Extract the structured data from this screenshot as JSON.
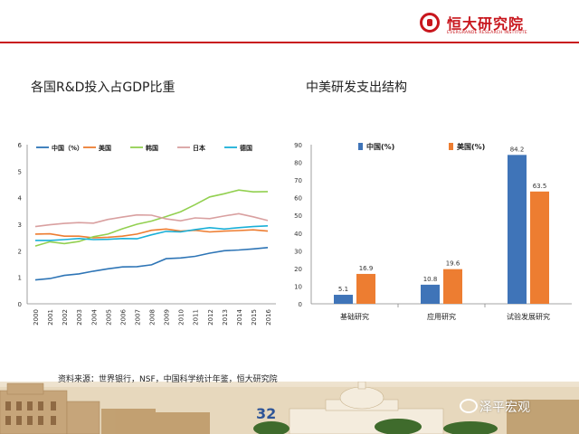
{
  "brand": {
    "cn": "恒大研究院",
    "en": "EVERGRANDE RESEARCH INSTITUTE",
    "accent": "#c8161d"
  },
  "slide": {
    "left_title": "各国R&D投入占GDP比重",
    "right_title": "中美研发支出结构",
    "source": "资料来源：世界银行，NSF，中国科学统计年鉴，恒大研究院",
    "page_number": "32",
    "watermark": "泽平宏观"
  },
  "chart_data": [
    {
      "type": "line",
      "x": [
        "2000",
        "2001",
        "2002",
        "2003",
        "2004",
        "2005",
        "2006",
        "2007",
        "2008",
        "2009",
        "2010",
        "2011",
        "2012",
        "2013",
        "2014",
        "2015",
        "2016"
      ],
      "ylim": [
        0,
        6
      ],
      "yticks": [
        "0",
        "1",
        "2",
        "3",
        "4",
        "5",
        "6"
      ],
      "legend_position": "top",
      "grid": false,
      "series": [
        {
          "name": "中国（%）",
          "color": "#2e75b6",
          "values": [
            0.9,
            0.95,
            1.07,
            1.13,
            1.23,
            1.32,
            1.39,
            1.4,
            1.47,
            1.7,
            1.73,
            1.79,
            1.91,
            2.0,
            2.03,
            2.07,
            2.12
          ]
        },
        {
          "name": "美国",
          "color": "#ed7d31",
          "values": [
            2.63,
            2.64,
            2.55,
            2.55,
            2.49,
            2.51,
            2.55,
            2.63,
            2.77,
            2.82,
            2.74,
            2.77,
            2.71,
            2.74,
            2.76,
            2.79,
            2.74
          ]
        },
        {
          "name": "韩国",
          "color": "#92d050",
          "values": [
            2.18,
            2.34,
            2.27,
            2.35,
            2.53,
            2.63,
            2.83,
            3.0,
            3.12,
            3.29,
            3.47,
            3.74,
            4.03,
            4.15,
            4.29,
            4.22,
            4.23
          ]
        },
        {
          "name": "日本",
          "color": "#d9a0a0",
          "values": [
            2.91,
            2.98,
            3.03,
            3.06,
            3.04,
            3.18,
            3.27,
            3.35,
            3.34,
            3.2,
            3.13,
            3.24,
            3.21,
            3.31,
            3.4,
            3.28,
            3.14
          ]
        },
        {
          "name": "德国",
          "color": "#1ab0d8",
          "values": [
            2.39,
            2.39,
            2.42,
            2.46,
            2.42,
            2.43,
            2.46,
            2.45,
            2.6,
            2.73,
            2.71,
            2.8,
            2.87,
            2.82,
            2.87,
            2.91,
            2.94
          ]
        }
      ]
    },
    {
      "type": "bar",
      "categories": [
        "基础研究",
        "应用研究",
        "试验发展研究"
      ],
      "ylim": [
        0,
        90
      ],
      "yticks": [
        "0",
        "10",
        "20",
        "30",
        "40",
        "50",
        "60",
        "70",
        "80",
        "90"
      ],
      "legend_position": "top",
      "grid": false,
      "series": [
        {
          "name": "中国(%)",
          "color": "#3f74b8",
          "values": [
            5.1,
            10.8,
            84.2
          ],
          "labels": [
            "5.1",
            "10.8",
            "84.2"
          ]
        },
        {
          "name": "美国(%)",
          "color": "#ed7d31",
          "values": [
            16.9,
            19.6,
            63.5
          ],
          "labels": [
            "16.9",
            "19.6",
            "63.5"
          ]
        }
      ]
    }
  ]
}
